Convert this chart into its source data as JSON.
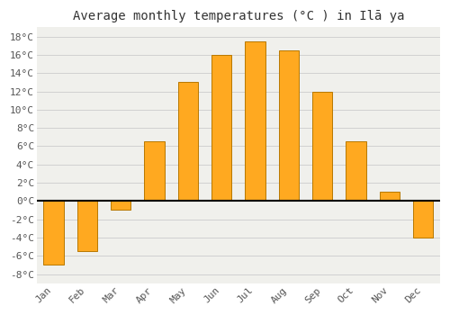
{
  "title": "Average monthly temperatures (°C ) in Ilā ya",
  "months": [
    "Jan",
    "Feb",
    "Mar",
    "Apr",
    "May",
    "Jun",
    "Jul",
    "Aug",
    "Sep",
    "Oct",
    "Nov",
    "Dec"
  ],
  "values": [
    -7.0,
    -5.5,
    -1.0,
    6.5,
    13.0,
    16.0,
    17.5,
    16.5,
    12.0,
    6.5,
    1.0,
    -4.0
  ],
  "bar_color": "#FFA920",
  "bar_edge_color": "#B87800",
  "background_color": "#FFFFFF",
  "plot_bg_color": "#F0F0EC",
  "grid_color": "#CCCCCC",
  "ylim": [
    -9,
    19
  ],
  "yticks": [
    -8,
    -6,
    -4,
    -2,
    0,
    2,
    4,
    6,
    8,
    10,
    12,
    14,
    16,
    18
  ],
  "zero_line_color": "#000000",
  "title_fontsize": 10,
  "tick_fontsize": 8,
  "bar_width": 0.6
}
